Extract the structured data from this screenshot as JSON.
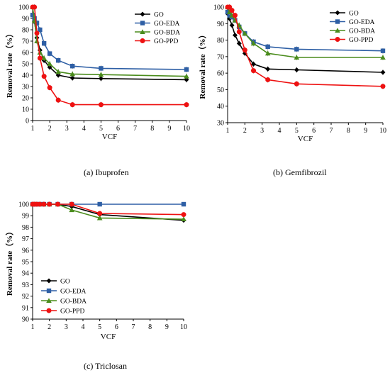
{
  "chart_data": [
    {
      "type": "line",
      "caption": "(a) Ibuprofen",
      "xlabel": "VCF",
      "ylabel": "Removal rate（%）",
      "xlim": [
        1,
        10
      ],
      "ylim": [
        0,
        100
      ],
      "xticks": [
        1,
        2,
        3,
        4,
        5,
        6,
        7,
        8,
        9,
        10
      ],
      "yticks": [
        0,
        10,
        20,
        30,
        40,
        50,
        60,
        70,
        80,
        90,
        100
      ],
      "grid": false,
      "legend_position": "top-right",
      "x": [
        1.0,
        1.11,
        1.25,
        1.43,
        1.67,
        2.0,
        2.5,
        3.33,
        5.0,
        10.0
      ],
      "series": [
        {
          "name": "GO",
          "color": "#000000",
          "marker": "diamond",
          "values": [
            93,
            87,
            73,
            62,
            53,
            47,
            40,
            37.5,
            37,
            36
          ]
        },
        {
          "name": "GO-EDA",
          "color": "#2e5fa5",
          "marker": "square",
          "values": [
            93,
            90,
            86,
            80,
            68,
            59,
            53,
            48,
            46,
            45
          ]
        },
        {
          "name": "GO-BDA",
          "color": "#4a8c1c",
          "marker": "triangle",
          "values": [
            100,
            88,
            70,
            60,
            55,
            50,
            43,
            41,
            40.5,
            39
          ]
        },
        {
          "name": "GO-PPD",
          "color": "#ee1111",
          "marker": "circle",
          "values": [
            100,
            100,
            77,
            55,
            39,
            29,
            18,
            14,
            14,
            14
          ]
        }
      ]
    },
    {
      "type": "line",
      "caption": "(b) Gemfibrozil",
      "xlabel": "VCF",
      "ylabel": "Removal rate（%）",
      "xlim": [
        1,
        10
      ],
      "ylim": [
        30,
        100
      ],
      "xticks": [
        1,
        2,
        3,
        4,
        5,
        6,
        7,
        8,
        9,
        10
      ],
      "yticks": [
        30,
        40,
        50,
        60,
        70,
        80,
        90,
        100
      ],
      "grid": false,
      "legend_position": "top-right",
      "x": [
        1.0,
        1.11,
        1.25,
        1.43,
        1.67,
        2.0,
        2.5,
        3.33,
        5.0,
        10.0
      ],
      "series": [
        {
          "name": "GO",
          "color": "#000000",
          "marker": "diamond",
          "values": [
            96,
            93,
            89,
            83,
            78,
            72,
            65.5,
            62.5,
            62,
            60.5
          ]
        },
        {
          "name": "GO-EDA",
          "color": "#2e5fa5",
          "marker": "square",
          "values": [
            97,
            95,
            94,
            92,
            88,
            84,
            79,
            76,
            74.5,
            73.5
          ]
        },
        {
          "name": "GO-BDA",
          "color": "#4a8c1c",
          "marker": "triangle",
          "values": [
            100,
            97,
            95,
            92,
            89,
            84,
            78,
            72,
            69.5,
            69.5
          ]
        },
        {
          "name": "GO-PPD",
          "color": "#ee1111",
          "marker": "circle",
          "values": [
            100,
            100,
            98,
            95,
            85,
            74,
            61.5,
            56,
            53.5,
            52
          ]
        }
      ]
    },
    {
      "type": "line",
      "caption": "(c) Triclosan",
      "xlabel": "VCF",
      "ylabel": "Removal rate（%）",
      "xlim": [
        1,
        10
      ],
      "ylim": [
        90,
        100
      ],
      "xticks": [
        1,
        2,
        3,
        4,
        5,
        6,
        7,
        8,
        9,
        10
      ],
      "yticks": [
        90,
        91,
        92,
        93,
        94,
        95,
        96,
        97,
        98,
        99,
        100
      ],
      "grid": false,
      "legend_position": "bottom-left",
      "x": [
        1.0,
        1.11,
        1.25,
        1.43,
        1.67,
        2.0,
        2.5,
        3.33,
        5.0,
        10.0
      ],
      "series": [
        {
          "name": "GO",
          "color": "#000000",
          "marker": "diamond",
          "values": [
            100,
            100,
            100,
            100,
            100,
            100,
            100,
            99.8,
            99.1,
            98.6
          ]
        },
        {
          "name": "GO-EDA",
          "color": "#2e5fa5",
          "marker": "square",
          "values": [
            100,
            100,
            100,
            100,
            100,
            100,
            100,
            100,
            100,
            100
          ]
        },
        {
          "name": "GO-BDA",
          "color": "#4a8c1c",
          "marker": "triangle",
          "values": [
            100,
            100,
            100,
            100,
            100,
            100,
            100,
            99.5,
            98.8,
            98.7
          ]
        },
        {
          "name": "GO-PPD",
          "color": "#ee1111",
          "marker": "circle",
          "values": [
            100,
            100,
            100,
            100,
            100,
            100,
            100,
            100,
            99.2,
            99.1
          ]
        }
      ]
    }
  ]
}
